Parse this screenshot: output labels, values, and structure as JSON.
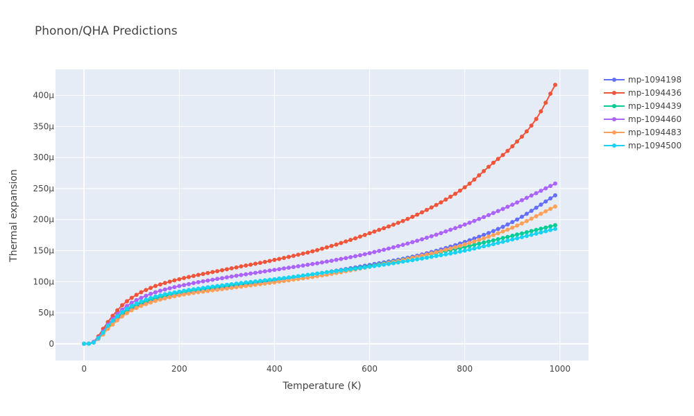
{
  "chart_data": {
    "type": "line",
    "title": "Phonon/QHA Predictions",
    "xlabel": "Temperature (K)",
    "ylabel": "Thermal expansion",
    "x_ticks": [
      "0",
      "200",
      "400",
      "600",
      "800",
      "1000"
    ],
    "y_ticks": [
      "0",
      "50µ",
      "100µ",
      "150µ",
      "200µ",
      "250µ",
      "300µ",
      "350µ",
      "400µ"
    ],
    "x_tick_values": [
      0,
      200,
      400,
      600,
      800,
      1000
    ],
    "y_tick_values": [
      0,
      50,
      100,
      150,
      200,
      250,
      300,
      350,
      400
    ],
    "y_unit_scale": 1e-06,
    "xlim": [
      -60,
      1060
    ],
    "ylim": [
      -27,
      442
    ],
    "x_start": 0,
    "x_step": 10,
    "x_end": 990,
    "grid": true,
    "legend_position": "top-right",
    "background": "#e5ecf6",
    "series": [
      {
        "name": "mp-1094198",
        "color": "#636efa",
        "anchors_x": [
          0,
          10,
          20,
          30,
          40,
          50,
          60,
          80,
          100,
          120,
          150,
          200,
          300,
          400,
          500,
          600,
          700,
          800,
          900,
          990
        ],
        "anchors_y": [
          0,
          0.2,
          2,
          8,
          16,
          25,
          33,
          46,
          56,
          63,
          70,
          79,
          91,
          102,
          114,
          127,
          142,
          164,
          196,
          239
        ]
      },
      {
        "name": "mp-1094436",
        "color": "#ef553b",
        "anchors_x": [
          0,
          10,
          20,
          30,
          40,
          50,
          60,
          80,
          100,
          120,
          150,
          200,
          300,
          400,
          500,
          600,
          700,
          800,
          850,
          900,
          950,
          990
        ],
        "anchors_y": [
          0,
          0.3,
          3,
          12,
          24,
          35,
          45,
          62,
          74,
          83,
          93,
          104,
          120,
          135,
          153,
          178,
          208,
          252,
          285,
          318,
          362,
          417
        ]
      },
      {
        "name": "mp-1094439",
        "color": "#00cc96",
        "anchors_x": [
          0,
          10,
          20,
          30,
          40,
          50,
          60,
          80,
          100,
          120,
          150,
          200,
          300,
          400,
          500,
          600,
          700,
          800,
          900,
          990
        ],
        "anchors_y": [
          0,
          0.2,
          2,
          9,
          17,
          27,
          35,
          49,
          59,
          66,
          73,
          82,
          93,
          103,
          114,
          125,
          140,
          156,
          174,
          191
        ]
      },
      {
        "name": "mp-1094460",
        "color": "#ab63fa",
        "anchors_x": [
          0,
          10,
          20,
          30,
          40,
          50,
          60,
          80,
          100,
          120,
          150,
          200,
          300,
          400,
          500,
          600,
          700,
          800,
          900,
          990
        ],
        "anchors_y": [
          0,
          0.3,
          3,
          10,
          20,
          31,
          40,
          55,
          66,
          74,
          83,
          93,
          107,
          119,
          131,
          146,
          166,
          192,
          224,
          258
        ]
      },
      {
        "name": "mp-1094483",
        "color": "#ffa15a",
        "anchors_x": [
          0,
          10,
          20,
          30,
          40,
          50,
          60,
          80,
          100,
          120,
          150,
          200,
          300,
          400,
          500,
          600,
          700,
          800,
          900,
          990
        ],
        "anchors_y": [
          0,
          0.2,
          2,
          8,
          15,
          24,
          31,
          44,
          54,
          61,
          69,
          78,
          89,
          99,
          110,
          124,
          140,
          160,
          187,
          221
        ]
      },
      {
        "name": "mp-1094500",
        "color": "#19d3f3",
        "anchors_x": [
          0,
          10,
          20,
          30,
          40,
          50,
          60,
          80,
          100,
          120,
          150,
          200,
          300,
          400,
          500,
          600,
          700,
          800,
          900,
          990
        ],
        "anchors_y": [
          0,
          0.2,
          2,
          9,
          18,
          29,
          37,
          51,
          61,
          68,
          76,
          84,
          95,
          104,
          114,
          124,
          136,
          150,
          168,
          185
        ]
      }
    ]
  }
}
